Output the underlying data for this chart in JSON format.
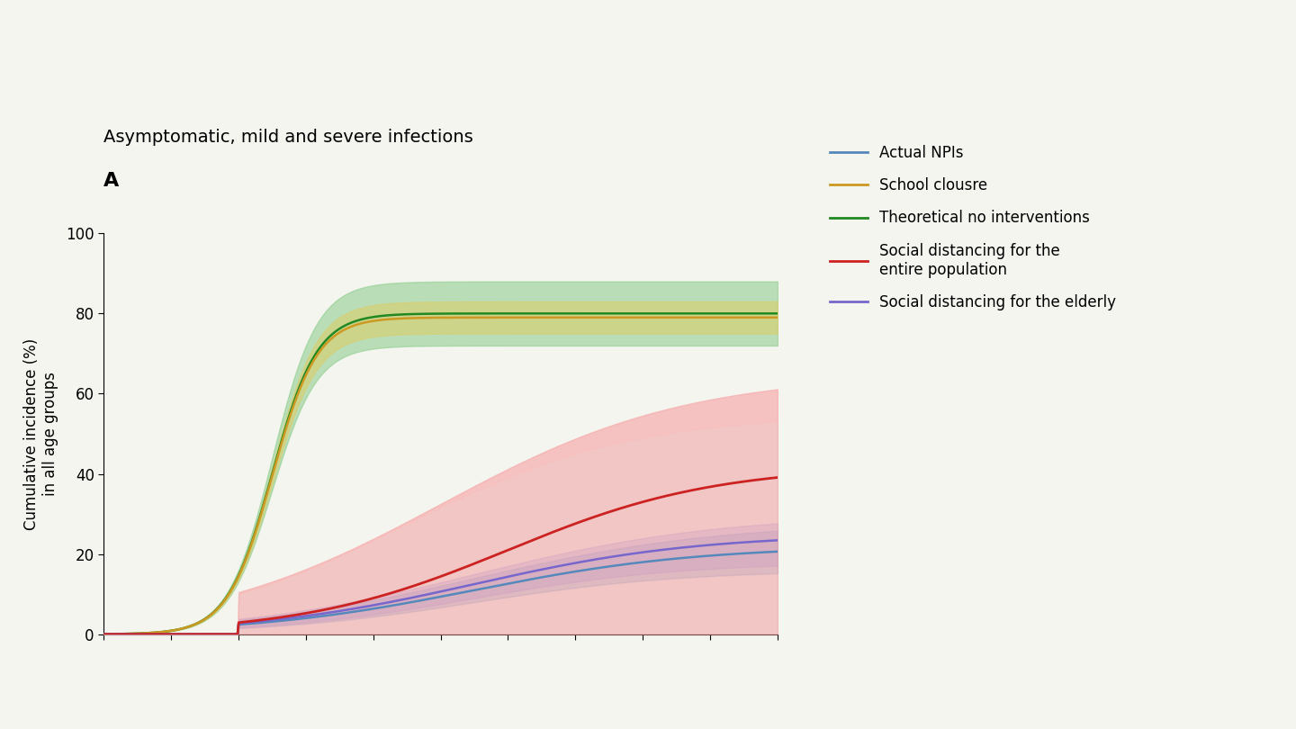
{
  "title": "Asymptomatic, mild and severe infections",
  "panel_label": "A",
  "ylabel": "Cumulative incidence (%)\nin all age groups",
  "ylim": [
    0,
    100
  ],
  "yticks": [
    0,
    20,
    40,
    60,
    80,
    100
  ],
  "background_color": "#f5f5f0",
  "colors": {
    "actual_npis": "#5588bb",
    "school_closure": "#cc9922",
    "no_interventions": "#228822",
    "social_dist_all": "#cc2222",
    "social_dist_elderly": "#7766cc"
  },
  "legend_labels": {
    "actual_npis": "Actual NPIs",
    "school_closure": "School clousre",
    "no_interventions": "Theoretical no interventions",
    "social_dist_all_line1": "Social distancing for the",
    "social_dist_all_line2": "entire population",
    "social_dist_elderly": "Social distancing for the elderly"
  }
}
